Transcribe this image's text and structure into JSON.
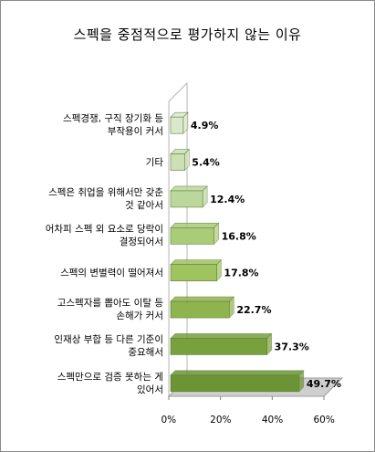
{
  "colors": {
    "floor": "#cfcfcf",
    "wall_line": "#b5b5b5",
    "bar_shades": [
      "#dbe8cc",
      "#ccdfb5",
      "#bcd79c",
      "#a9cc78",
      "#9ec35f",
      "#8fb34d",
      "#78a03c",
      "#6c9335"
    ]
  },
  "chart_data": {
    "type": "bar",
    "orientation": "horizontal",
    "title": "스펙을 중점적으로 평가하지 않는 이유",
    "categories": [
      "스펙경쟁, 구직 장기화 등\n부작용이 커서",
      "기타",
      "스펙은 취업을 위해서만 갖춘\n것 같아서",
      "어차피 스펙 외 요소로 당락이\n결정되어서",
      "스펙의 변별력이 떨어져서",
      "고스펙자를 뽑아도 이탈 등\n손해가 커서",
      "인재상 부합 등 다른 기준이\n중요해서",
      "스펙만으로 검증 못하는 게\n있어서"
    ],
    "values": [
      4.9,
      5.4,
      12.4,
      16.8,
      17.8,
      22.7,
      37.3,
      49.7
    ],
    "value_labels": [
      "4.9%",
      "5.4%",
      "12.4%",
      "16.8%",
      "17.8%",
      "22.7%",
      "37.3%",
      "49.7%"
    ],
    "x_ticks": [
      "0%",
      "20%",
      "40%",
      "60%"
    ],
    "xlim": [
      0,
      60
    ],
    "grid": false,
    "legend": "none",
    "style": "3d"
  }
}
